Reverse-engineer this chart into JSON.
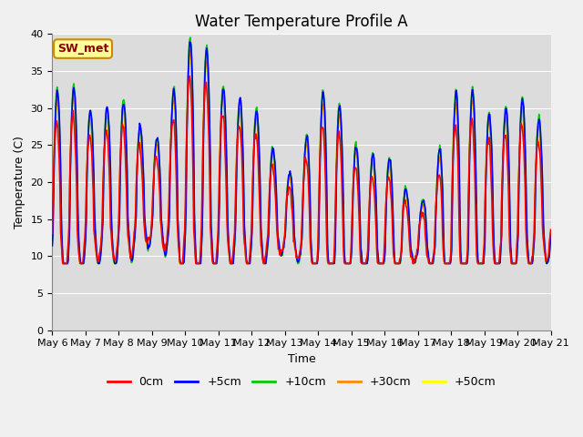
{
  "title": "Water Temperature Profile A",
  "xlabel": "Time",
  "ylabel": "Temperature (C)",
  "ylim": [
    0,
    40
  ],
  "xlim": [
    0,
    15
  ],
  "annotation": "SW_met",
  "legend_labels": [
    "0cm",
    "+5cm",
    "+10cm",
    "+30cm",
    "+50cm"
  ],
  "legend_colors": [
    "#ff0000",
    "#0000ff",
    "#00cc00",
    "#ff8800",
    "#ffff00"
  ],
  "x_tick_labels": [
    "May 6",
    "May 7",
    "May 8",
    "May 9",
    "May 10",
    "May 11",
    "May 12",
    "May 13",
    "May 14",
    "May 15",
    "May 16",
    "May 17",
    "May 18",
    "May 19",
    "May 20",
    "May 21"
  ],
  "bg_color": "#dcdcdc",
  "fig_bg_color": "#f0f0f0",
  "title_fontsize": 12,
  "label_fontsize": 9,
  "tick_fontsize": 8
}
